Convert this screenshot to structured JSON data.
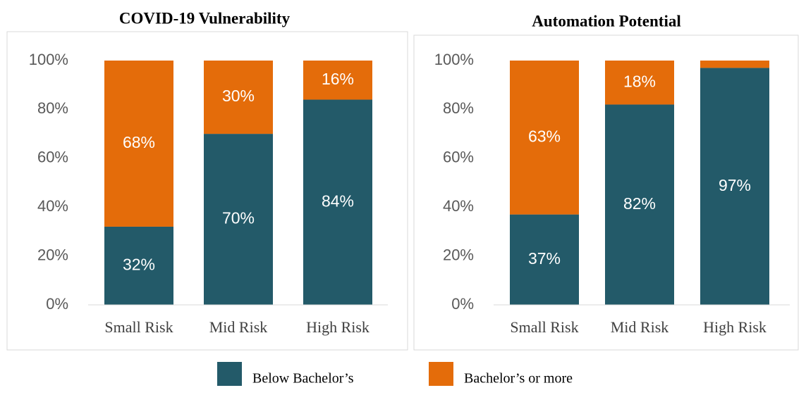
{
  "chart_data": [
    {
      "type": "stacked_bar",
      "title": "COVID-19 Vulnerability",
      "categories": [
        "Small Risk",
        "Mid Risk",
        "High Risk"
      ],
      "series": [
        {
          "color": "#235a69",
          "values": [
            32,
            70,
            84
          ],
          "value_labels": [
            "32%",
            "70%",
            "84%"
          ]
        },
        {
          "color": "#e46c0a",
          "values": [
            68,
            30,
            16
          ],
          "value_labels": [
            "68%",
            "30%",
            "16%"
          ]
        }
      ],
      "ylim": [
        0,
        100
      ],
      "yticks": [
        {
          "value": 0,
          "label": "0%"
        },
        {
          "value": 20,
          "label": "20%"
        },
        {
          "value": 40,
          "label": "40%"
        },
        {
          "value": 60,
          "label": "60%"
        },
        {
          "value": 80,
          "label": "80%"
        },
        {
          "value": 100,
          "label": "100%"
        }
      ]
    },
    {
      "type": "stacked_bar",
      "title": "Automation Potential",
      "categories": [
        "Small Risk",
        "Mid Risk",
        "High Risk"
      ],
      "series": [
        {
          "color": "#235a69",
          "values": [
            37,
            82,
            97
          ],
          "value_labels": [
            "37%",
            "82%",
            "97%"
          ]
        },
        {
          "color": "#e46c0a",
          "values": [
            63,
            18,
            3
          ],
          "value_labels": [
            "63%",
            "18%",
            null
          ]
        }
      ],
      "ylim": [
        0,
        100
      ],
      "yticks": [
        {
          "value": 0,
          "label": "0%"
        },
        {
          "value": 20,
          "label": "20%"
        },
        {
          "value": 40,
          "label": "40%"
        },
        {
          "value": 60,
          "label": "60%"
        },
        {
          "value": 80,
          "label": "80%"
        },
        {
          "value": 100,
          "label": "100%"
        }
      ]
    }
  ],
  "legend": [
    "Below Bachelor’s",
    "Bachelor’s or more"
  ]
}
